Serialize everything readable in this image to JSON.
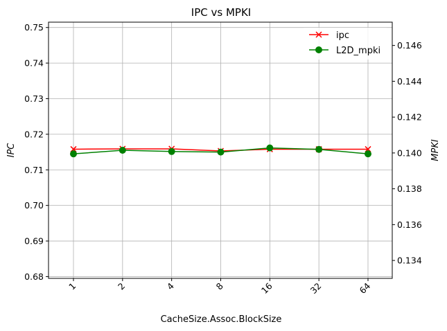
{
  "chart_data": {
    "type": "line",
    "title": "IPC vs MPKI",
    "xlabel": "CacheSize.Assoc.BlockSize",
    "ylabel_left": "IPC",
    "ylabel_right": "MPKI",
    "categories": [
      "1",
      "2",
      "4",
      "8",
      "16",
      "32",
      "64"
    ],
    "grid": true,
    "legend_position": "top-right",
    "y_left": {
      "lim": [
        0.6795,
        0.7515
      ],
      "ticks": [
        "0.68",
        "0.69",
        "0.70",
        "0.71",
        "0.72",
        "0.73",
        "0.74",
        "0.75"
      ],
      "tick_values": [
        0.68,
        0.69,
        0.7,
        0.71,
        0.72,
        0.73,
        0.74,
        0.75
      ]
    },
    "y_right": {
      "lim": [
        0.133,
        0.1473
      ],
      "ticks": [
        "0.134",
        "0.136",
        "0.138",
        "0.140",
        "0.142",
        "0.144",
        "0.146"
      ],
      "tick_values": [
        0.134,
        0.136,
        0.138,
        0.14,
        0.142,
        0.144,
        0.146
      ]
    },
    "series": [
      {
        "name": "ipc",
        "axis": "left",
        "color": "#ff0000",
        "marker": "x",
        "values": [
          0.7158,
          0.7159,
          0.7159,
          0.7153,
          0.7158,
          0.7158,
          0.7158
        ]
      },
      {
        "name": "L2D_mpki",
        "axis": "right",
        "color": "#008000",
        "marker": "o",
        "values": [
          0.13995,
          0.14015,
          0.14008,
          0.14005,
          0.14028,
          0.1402,
          0.13995
        ]
      }
    ]
  }
}
